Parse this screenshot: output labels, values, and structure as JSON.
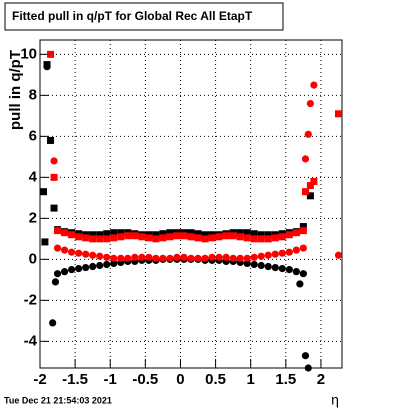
{
  "chart_data": {
    "type": "scatter",
    "title": "Fitted pull in q/pT for Global Rec All EtapT",
    "y_label": "pull in q/pT",
    "x_label": "η",
    "footer": "Tue Dec 21 21:54:03 2021",
    "xlim": [
      -2,
      2.3
    ],
    "ylim": [
      -5.3,
      10.7
    ],
    "xticks": [
      -2,
      -1.5,
      -1,
      -0.5,
      0,
      0.5,
      1,
      1.5,
      2
    ],
    "yticks": [
      -4,
      -2,
      0,
      2,
      4,
      6,
      8,
      10
    ],
    "grid": true,
    "series": [
      {
        "marker": "square",
        "color": "#000000",
        "x": [
          -1.75,
          -1.65,
          -1.55,
          -1.45,
          -1.35,
          -1.25,
          -1.15,
          -1.05,
          -0.95,
          -0.85,
          -0.75,
          -0.65,
          -0.55,
          -0.45,
          -0.35,
          -0.25,
          -0.15,
          -0.05,
          0.05,
          0.15,
          0.25,
          0.35,
          0.45,
          0.55,
          0.65,
          0.75,
          0.85,
          0.95,
          1.05,
          1.15,
          1.25,
          1.35,
          1.45,
          1.55,
          1.65,
          1.75,
          -1.95,
          -1.9,
          -1.85,
          -1.8,
          -1.93,
          1.85
        ],
        "values": [
          1.45,
          1.35,
          1.3,
          1.25,
          1.2,
          1.2,
          1.2,
          1.25,
          1.3,
          1.3,
          1.3,
          1.25,
          1.2,
          1.2,
          1.2,
          1.25,
          1.3,
          1.3,
          1.3,
          1.3,
          1.25,
          1.2,
          1.2,
          1.2,
          1.25,
          1.3,
          1.3,
          1.3,
          1.25,
          1.2,
          1.2,
          1.2,
          1.25,
          1.3,
          1.35,
          1.6,
          3.3,
          9.5,
          5.8,
          2.5,
          0.85,
          3.1
        ]
      },
      {
        "marker": "square",
        "color": "#ff0000",
        "x": [
          -1.75,
          -1.65,
          -1.55,
          -1.45,
          -1.35,
          -1.25,
          -1.15,
          -1.05,
          -0.95,
          -0.85,
          -0.75,
          -0.65,
          -0.55,
          -0.45,
          -0.35,
          -0.25,
          -0.15,
          -0.05,
          0.05,
          0.15,
          0.25,
          0.35,
          0.45,
          0.55,
          0.65,
          0.75,
          0.85,
          0.95,
          1.05,
          1.15,
          1.25,
          1.35,
          1.45,
          1.55,
          1.65,
          1.75,
          -1.85,
          -1.8,
          1.78,
          1.85,
          1.9,
          2.25
        ],
        "values": [
          1.4,
          1.3,
          1.2,
          1.1,
          1.05,
          1.0,
          1.0,
          1.0,
          1.05,
          1.1,
          1.15,
          1.15,
          1.1,
          1.05,
          1.0,
          1.05,
          1.1,
          1.15,
          1.15,
          1.1,
          1.05,
          1.0,
          1.05,
          1.1,
          1.15,
          1.15,
          1.1,
          1.05,
          1.0,
          1.0,
          1.0,
          1.05,
          1.1,
          1.2,
          1.3,
          1.4,
          10.0,
          4.0,
          3.3,
          3.6,
          3.8,
          7.1
        ]
      },
      {
        "marker": "circle",
        "color": "#000000",
        "x": [
          -1.75,
          -1.65,
          -1.55,
          -1.45,
          -1.35,
          -1.25,
          -1.15,
          -1.05,
          -0.95,
          -0.85,
          -0.75,
          -0.65,
          -0.55,
          -0.45,
          -0.35,
          -0.25,
          -0.15,
          -0.05,
          0.05,
          0.15,
          0.25,
          0.35,
          0.45,
          0.55,
          0.65,
          0.75,
          0.85,
          0.95,
          1.05,
          1.15,
          1.25,
          1.35,
          1.45,
          1.55,
          1.65,
          1.75,
          -1.78,
          -1.82,
          -1.9,
          1.7,
          1.78,
          1.82
        ],
        "values": [
          -0.7,
          -0.6,
          -0.5,
          -0.45,
          -0.4,
          -0.35,
          -0.3,
          -0.25,
          -0.2,
          -0.15,
          -0.1,
          -0.1,
          -0.05,
          -0.05,
          -0.05,
          0,
          0,
          0,
          0,
          0,
          0,
          -0.05,
          -0.05,
          -0.05,
          -0.1,
          -0.1,
          -0.15,
          -0.2,
          -0.25,
          -0.3,
          -0.35,
          -0.4,
          -0.45,
          -0.5,
          -0.6,
          -0.7,
          -1.1,
          -3.1,
          9.4,
          -1.2,
          -4.7,
          -5.3
        ]
      },
      {
        "marker": "circle",
        "color": "#ff0000",
        "x": [
          -1.75,
          -1.65,
          -1.55,
          -1.45,
          -1.35,
          -1.25,
          -1.15,
          -1.05,
          -0.95,
          -0.85,
          -0.75,
          -0.65,
          -0.55,
          -0.45,
          -0.35,
          -0.25,
          -0.15,
          -0.05,
          0.05,
          0.15,
          0.25,
          0.35,
          0.45,
          0.55,
          0.65,
          0.75,
          0.85,
          0.95,
          1.05,
          1.15,
          1.25,
          1.35,
          1.45,
          1.55,
          1.65,
          1.75,
          -1.8,
          1.78,
          1.82,
          1.85,
          1.9,
          2.25
        ],
        "values": [
          0.55,
          0.45,
          0.35,
          0.3,
          0.25,
          0.2,
          0.15,
          0.1,
          0.05,
          0.05,
          0.05,
          0.1,
          0.1,
          0.1,
          0.05,
          0.05,
          0.05,
          0.1,
          0.1,
          0.05,
          0.05,
          0.05,
          0.1,
          0.1,
          0.1,
          0.05,
          0.05,
          0.05,
          0.1,
          0.15,
          0.2,
          0.25,
          0.3,
          0.35,
          0.45,
          0.55,
          4.8,
          4.9,
          6.1,
          7.6,
          8.5,
          0.2
        ]
      }
    ]
  }
}
